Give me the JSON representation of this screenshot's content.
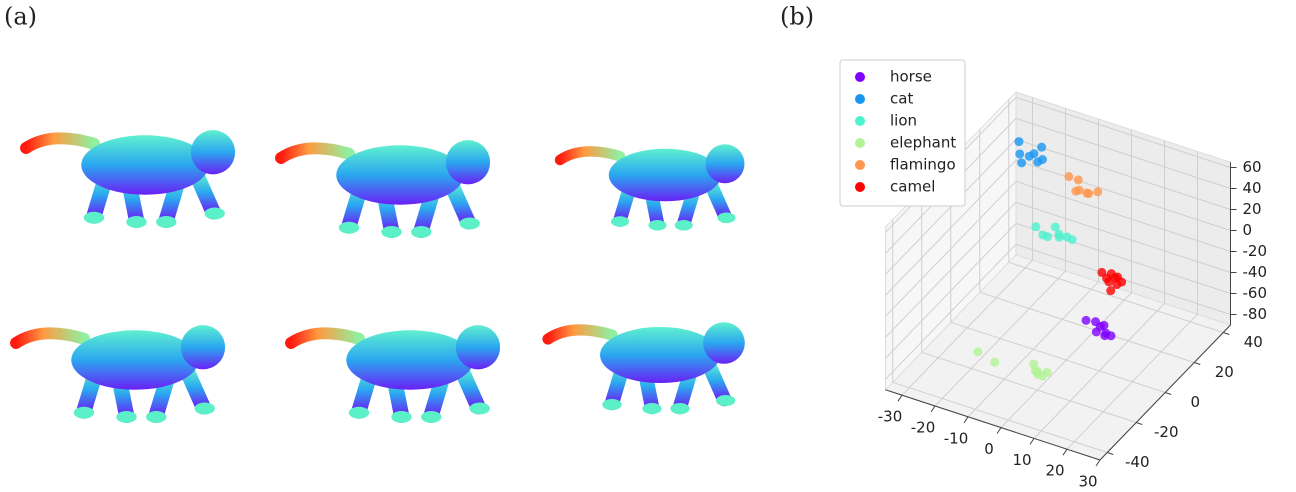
{
  "panel_labels": [
    "(a)",
    "(b)"
  ],
  "chart_data": {
    "type": "scatter3d",
    "xlim": [
      -35,
      30
    ],
    "ylim": [
      -45,
      45
    ],
    "zlim": [
      -90,
      65
    ],
    "xticks": [
      -30,
      -20,
      -10,
      0,
      10,
      20,
      30
    ],
    "yticks": [
      -40,
      -20,
      0,
      20,
      40
    ],
    "zticks": [
      -80,
      -60,
      -40,
      -20,
      0,
      20,
      40,
      60
    ],
    "grid": true,
    "legend": "upper-left",
    "series": [
      {
        "name": "horse",
        "color": "#8000ff",
        "x": [
          6,
          8,
          10,
          11,
          12,
          14,
          9,
          13
        ],
        "y": [
          0,
          2,
          -2,
          1,
          0,
          -1,
          3,
          -3
        ],
        "z": [
          -46,
          -48,
          -50,
          -47,
          -52,
          -51,
          -53,
          -49
        ]
      },
      {
        "name": "cat",
        "color": "#1996f3",
        "x": [
          -24,
          -22,
          -20,
          -18,
          -17,
          -21,
          -19,
          -16
        ],
        "y": [
          22,
          18,
          20,
          24,
          19,
          17,
          21,
          20
        ],
        "z": [
          62,
          58,
          55,
          60,
          54,
          52,
          57,
          56
        ]
      },
      {
        "name": "lion",
        "color": "#4df3ce",
        "x": [
          -18,
          -15,
          -13,
          -11,
          -9,
          -14,
          -10,
          -7
        ],
        "y": [
          20,
          18,
          22,
          20,
          21,
          19,
          18,
          20
        ],
        "z": [
          -10,
          -12,
          -8,
          -10,
          -12,
          -14,
          -9,
          -11
        ]
      },
      {
        "name": "elephant",
        "color": "#b2f396",
        "x": [
          -18,
          -12,
          -2,
          0,
          1,
          -1,
          2,
          3
        ],
        "y": [
          -20,
          -22,
          -18,
          -20,
          -22,
          -19,
          -21,
          -20
        ],
        "z": [
          -72,
          -73,
          -70,
          -72,
          -71,
          -74,
          -73,
          -70
        ]
      },
      {
        "name": "flamingo",
        "color": "#ff964f",
        "x": [
          -8,
          -6,
          -4,
          -2,
          -1,
          -5,
          -3
        ],
        "y": [
          20,
          22,
          18,
          20,
          24,
          18,
          21
        ],
        "z": [
          48,
          44,
          42,
          38,
          35,
          40,
          36
        ]
      },
      {
        "name": "camel",
        "color": "#ff0000",
        "x": [
          2,
          4,
          5,
          6,
          7,
          3,
          5,
          6,
          8
        ],
        "y": [
          20,
          22,
          18,
          20,
          19,
          21,
          24,
          17,
          20
        ],
        "z": [
          -33,
          -35,
          -36,
          -34,
          -38,
          -39,
          -40,
          -42,
          -36
        ]
      }
    ]
  }
}
